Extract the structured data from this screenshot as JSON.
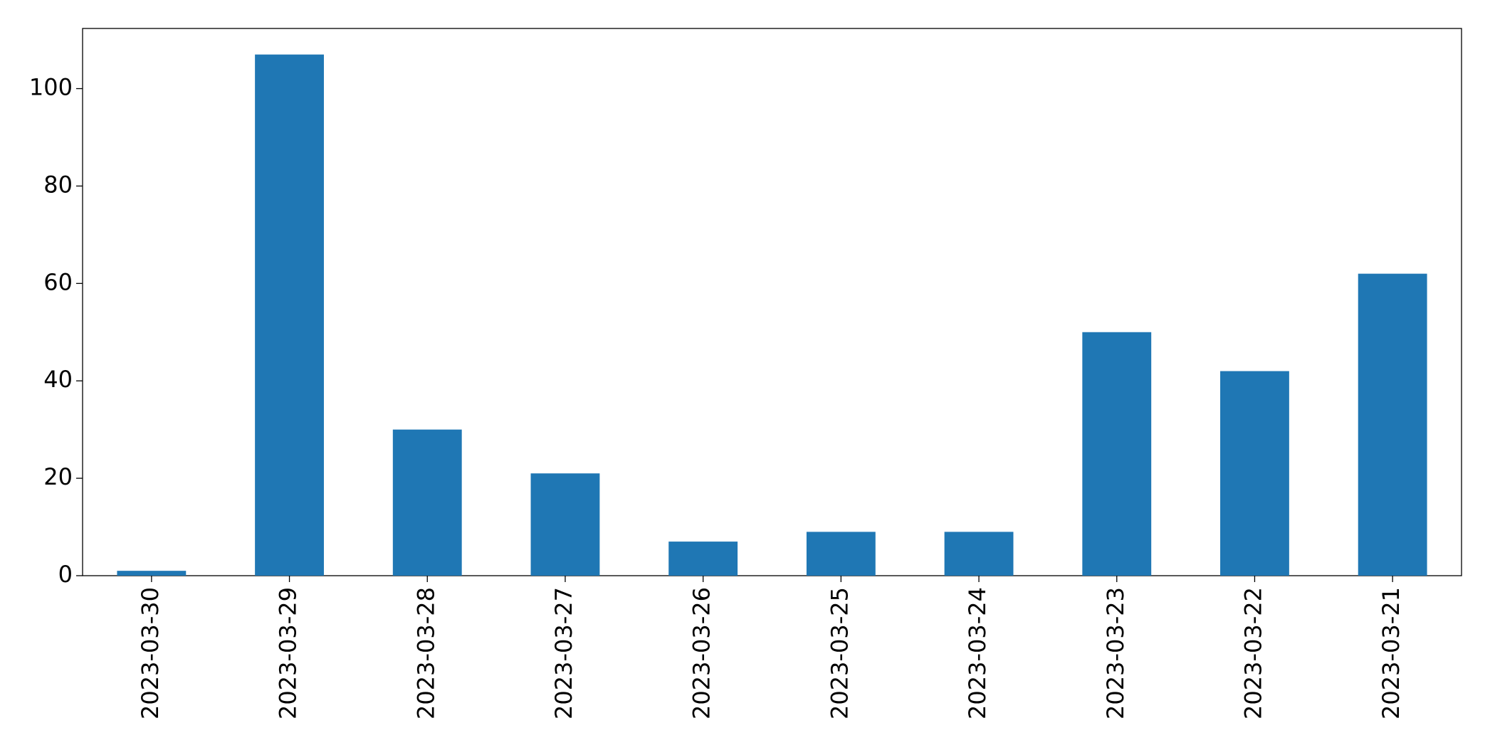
{
  "chart_data": {
    "type": "bar",
    "categories": [
      "2023-03-30",
      "2023-03-29",
      "2023-03-28",
      "2023-03-27",
      "2023-03-26",
      "2023-03-25",
      "2023-03-24",
      "2023-03-23",
      "2023-03-22",
      "2023-03-21"
    ],
    "values": [
      1,
      107,
      30,
      21,
      7,
      9,
      9,
      50,
      42,
      62
    ],
    "color": "#1f77b4",
    "ylim": [
      0,
      112.35
    ],
    "yticks": [
      0,
      20,
      40,
      60,
      80,
      100
    ],
    "grid": false
  }
}
